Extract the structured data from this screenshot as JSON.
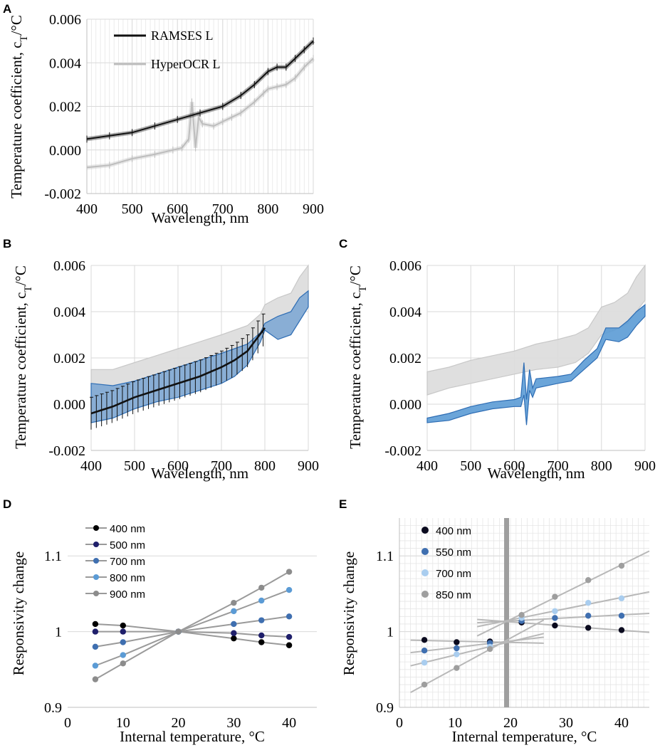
{
  "chart_data": [
    {
      "panel": "A",
      "type": "line",
      "xlabel": "Wavelength, nm",
      "ylabel": "Temperature coefficient, c",
      "ylabel_sub": "T",
      "ylabel_tail": "/°C",
      "xlim": [
        400,
        900
      ],
      "ylim": [
        -0.002,
        0.006
      ],
      "xticks": [
        "400",
        "500",
        "600",
        "700",
        "800",
        "900"
      ],
      "yticks": [
        "-0.002",
        "0.000",
        "0.002",
        "0.004",
        "0.006"
      ],
      "legend_position": "top-left",
      "series": [
        {
          "name": "RAMSES L",
          "color": "#111111",
          "x": [
            400,
            450,
            500,
            550,
            600,
            650,
            700,
            740,
            770,
            800,
            820,
            840,
            860,
            880,
            900
          ],
          "y": [
            0.0005,
            0.00065,
            0.0008,
            0.0011,
            0.0014,
            0.0017,
            0.002,
            0.0025,
            0.003,
            0.0036,
            0.0038,
            0.0038,
            0.0042,
            0.0046,
            0.005
          ]
        },
        {
          "name": "HyperOCR L",
          "color": "#bdbdbd",
          "x": [
            400,
            450,
            500,
            550,
            590,
            610,
            625,
            632,
            640,
            647,
            655,
            680,
            700,
            720,
            740,
            770,
            790,
            800,
            820,
            840,
            860,
            880,
            900
          ],
          "y": [
            -0.0008,
            -0.0007,
            -0.0004,
            -0.0002,
            0.0,
            0.0001,
            0.0005,
            0.0022,
            0.0001,
            0.0015,
            0.0012,
            0.0011,
            0.0013,
            0.0015,
            0.0017,
            0.0022,
            0.0026,
            0.0028,
            0.0029,
            0.003,
            0.0033,
            0.0038,
            0.0042
          ]
        }
      ]
    },
    {
      "panel": "B",
      "type": "area",
      "xlabel": "Wavelength, nm",
      "ylabel": "Temperature coefficient, c",
      "ylabel_sub": "T",
      "ylabel_tail": "/°C",
      "xlim": [
        400,
        900
      ],
      "ylim": [
        -0.002,
        0.006
      ],
      "xticks": [
        "400",
        "500",
        "600",
        "700",
        "800",
        "900"
      ],
      "yticks": [
        "-0.002",
        "0.000",
        "0.002",
        "0.004",
        "0.006"
      ],
      "bands": [
        {
          "name": "grey band",
          "color": "#dcdcdc",
          "x": [
            400,
            450,
            500,
            550,
            600,
            650,
            700,
            730,
            760,
            790,
            800,
            830,
            860,
            880,
            900
          ],
          "upper": [
            0.0015,
            0.0015,
            0.0018,
            0.0021,
            0.0024,
            0.0027,
            0.003,
            0.0032,
            0.0034,
            0.0039,
            0.0043,
            0.0046,
            0.0048,
            0.0055,
            0.006
          ],
          "lower": [
            -0.0008,
            -0.0006,
            -0.0002,
            0.0001,
            0.0004,
            0.0007,
            0.001,
            0.0012,
            0.0018,
            0.0027,
            0.0032,
            0.0029,
            0.003,
            0.0037,
            0.0042
          ]
        },
        {
          "name": "blue band",
          "color": "#7fa9d4",
          "x": [
            400,
            450,
            500,
            550,
            600,
            650,
            700,
            730,
            760,
            790,
            800,
            830,
            860,
            880,
            900
          ],
          "upper": [
            0.0009,
            0.0008,
            0.001,
            0.0013,
            0.0016,
            0.0019,
            0.0022,
            0.0024,
            0.0026,
            0.0031,
            0.0035,
            0.0038,
            0.004,
            0.0046,
            0.0049
          ],
          "lower": [
            -0.0008,
            -0.0006,
            -0.0002,
            0.0001,
            0.0003,
            0.0006,
            0.0009,
            0.0012,
            0.0017,
            0.0027,
            0.0032,
            0.0028,
            0.003,
            0.0036,
            0.0042
          ]
        }
      ],
      "series": [
        {
          "name": "mean",
          "color": "#111111",
          "x": [
            400,
            450,
            500,
            550,
            600,
            650,
            700,
            730,
            760,
            780,
            800
          ],
          "y": [
            -0.0004,
            -0.0001,
            0.0003,
            0.0006,
            0.0009,
            0.0012,
            0.0016,
            0.0019,
            0.0023,
            0.0028,
            0.0033
          ],
          "error": 0.0007
        }
      ]
    },
    {
      "panel": "C",
      "type": "area",
      "xlabel": "Wavelength, nm",
      "ylabel": "Temperature coefficient, c",
      "ylabel_sub": "T",
      "ylabel_tail": "/°C",
      "xlim": [
        400,
        900
      ],
      "ylim": [
        -0.002,
        0.006
      ],
      "xticks": [
        "400",
        "500",
        "600",
        "700",
        "800",
        "900"
      ],
      "yticks": [
        "-0.002",
        "0.000",
        "0.002",
        "0.004",
        "0.006"
      ],
      "bands": [
        {
          "name": "grey band",
          "color": "#dcdcdc",
          "x": [
            400,
            450,
            500,
            550,
            600,
            650,
            700,
            740,
            770,
            800,
            830,
            860,
            880,
            900
          ],
          "upper": [
            0.0014,
            0.0016,
            0.0019,
            0.0021,
            0.0023,
            0.0026,
            0.0028,
            0.003,
            0.0033,
            0.0042,
            0.0044,
            0.0048,
            0.0055,
            0.006
          ],
          "lower": [
            0.0004,
            0.0007,
            0.0009,
            0.0011,
            0.0013,
            0.0015,
            0.0016,
            0.0018,
            0.0022,
            0.003,
            0.0032,
            0.0035,
            0.004,
            0.0045
          ]
        },
        {
          "name": "blue band",
          "color": "#5b9bd5",
          "x": [
            400,
            450,
            500,
            550,
            600,
            615,
            622,
            628,
            635,
            642,
            650,
            700,
            730,
            760,
            790,
            810,
            840,
            860,
            880,
            900
          ],
          "upper": [
            -0.0006,
            -0.0004,
            -0.0001,
            0.0001,
            0.0002,
            0.0003,
            0.0018,
            0.0002,
            0.0015,
            0.0007,
            0.0011,
            0.0012,
            0.0013,
            0.0019,
            0.0024,
            0.0033,
            0.0033,
            0.0036,
            0.004,
            0.0043
          ],
          "lower": [
            -0.0008,
            -0.0007,
            -0.0004,
            -0.0002,
            -0.0001,
            -0.0001,
            0.0004,
            -0.0009,
            0.0006,
            0.0003,
            0.0007,
            0.0009,
            0.001,
            0.0015,
            0.002,
            0.0028,
            0.0027,
            0.0029,
            0.0034,
            0.0038
          ]
        }
      ]
    },
    {
      "panel": "D",
      "type": "scatter",
      "xlabel": "Internal temperature, °C",
      "ylabel": "Responsivity change",
      "xlim": [
        0,
        45
      ],
      "ylim": [
        0.9,
        1.15
      ],
      "xticks": [
        "0",
        "10",
        "20",
        "30",
        "40"
      ],
      "yticks": [
        "0.9",
        "1",
        "1.1"
      ],
      "legend_position": "top-left",
      "series": [
        {
          "name": "400 nm",
          "color": "#000000",
          "x": [
            5,
            10,
            20,
            30,
            35,
            40
          ],
          "y": [
            1.01,
            1.008,
            1.0,
            0.991,
            0.986,
            0.982
          ]
        },
        {
          "name": "500 nm",
          "color": "#1f1f6b",
          "x": [
            5,
            10,
            20,
            30,
            35,
            40
          ],
          "y": [
            1.0,
            1.0,
            1.0,
            0.998,
            0.995,
            0.993
          ]
        },
        {
          "name": "700 nm",
          "color": "#3f6fb0",
          "x": [
            5,
            10,
            20,
            30,
            35,
            40
          ],
          "y": [
            0.98,
            0.986,
            1.0,
            1.01,
            1.015,
            1.02
          ]
        },
        {
          "name": "800 nm",
          "color": "#5b9bd5",
          "x": [
            5,
            10,
            20,
            30,
            35,
            40
          ],
          "y": [
            0.955,
            0.969,
            1.0,
            1.027,
            1.041,
            1.055
          ]
        },
        {
          "name": "900 nm",
          "color": "#8c8c8c",
          "x": [
            5,
            10,
            20,
            30,
            35,
            40
          ],
          "y": [
            0.937,
            0.958,
            1.0,
            1.038,
            1.058,
            1.079
          ]
        }
      ]
    },
    {
      "panel": "E",
      "type": "scatter",
      "xlabel": "Internal temperature, °C",
      "ylabel": "Responsivity change",
      "xlim": [
        0,
        45
      ],
      "ylim": [
        0.9,
        1.15
      ],
      "xticks": [
        "0",
        "10",
        "20",
        "30",
        "40"
      ],
      "yticks": [
        "0.9",
        "1",
        "1.1"
      ],
      "legend_position": "top-left",
      "vertical_marker_x": 19.3,
      "series": [
        {
          "name": "400 nm",
          "color": "#0a0a1e",
          "x": [
            4.5,
            10.3,
            16.3,
            22,
            28,
            34,
            40
          ],
          "y": [
            0.989,
            0.986,
            0.987,
            1.012,
            1.008,
            1.005,
            1.002
          ]
        },
        {
          "name": "550 nm",
          "color": "#3f6fb0",
          "x": [
            4.5,
            10.3,
            16.3,
            22,
            28,
            34,
            40
          ],
          "y": [
            0.975,
            0.978,
            0.985,
            1.014,
            1.018,
            1.021,
            1.021
          ]
        },
        {
          "name": "700 nm",
          "color": "#a9cdef",
          "x": [
            4.5,
            10.3,
            16.3,
            22,
            28,
            34,
            40
          ],
          "y": [
            0.959,
            0.97,
            0.98,
            1.018,
            1.027,
            1.038,
            1.044
          ]
        },
        {
          "name": "850 nm",
          "color": "#9e9e9e",
          "x": [
            4.5,
            10.3,
            16.3,
            22,
            28,
            34,
            40
          ],
          "y": [
            0.93,
            0.952,
            0.977,
            1.022,
            1.046,
            1.068,
            1.087
          ]
        }
      ]
    }
  ]
}
